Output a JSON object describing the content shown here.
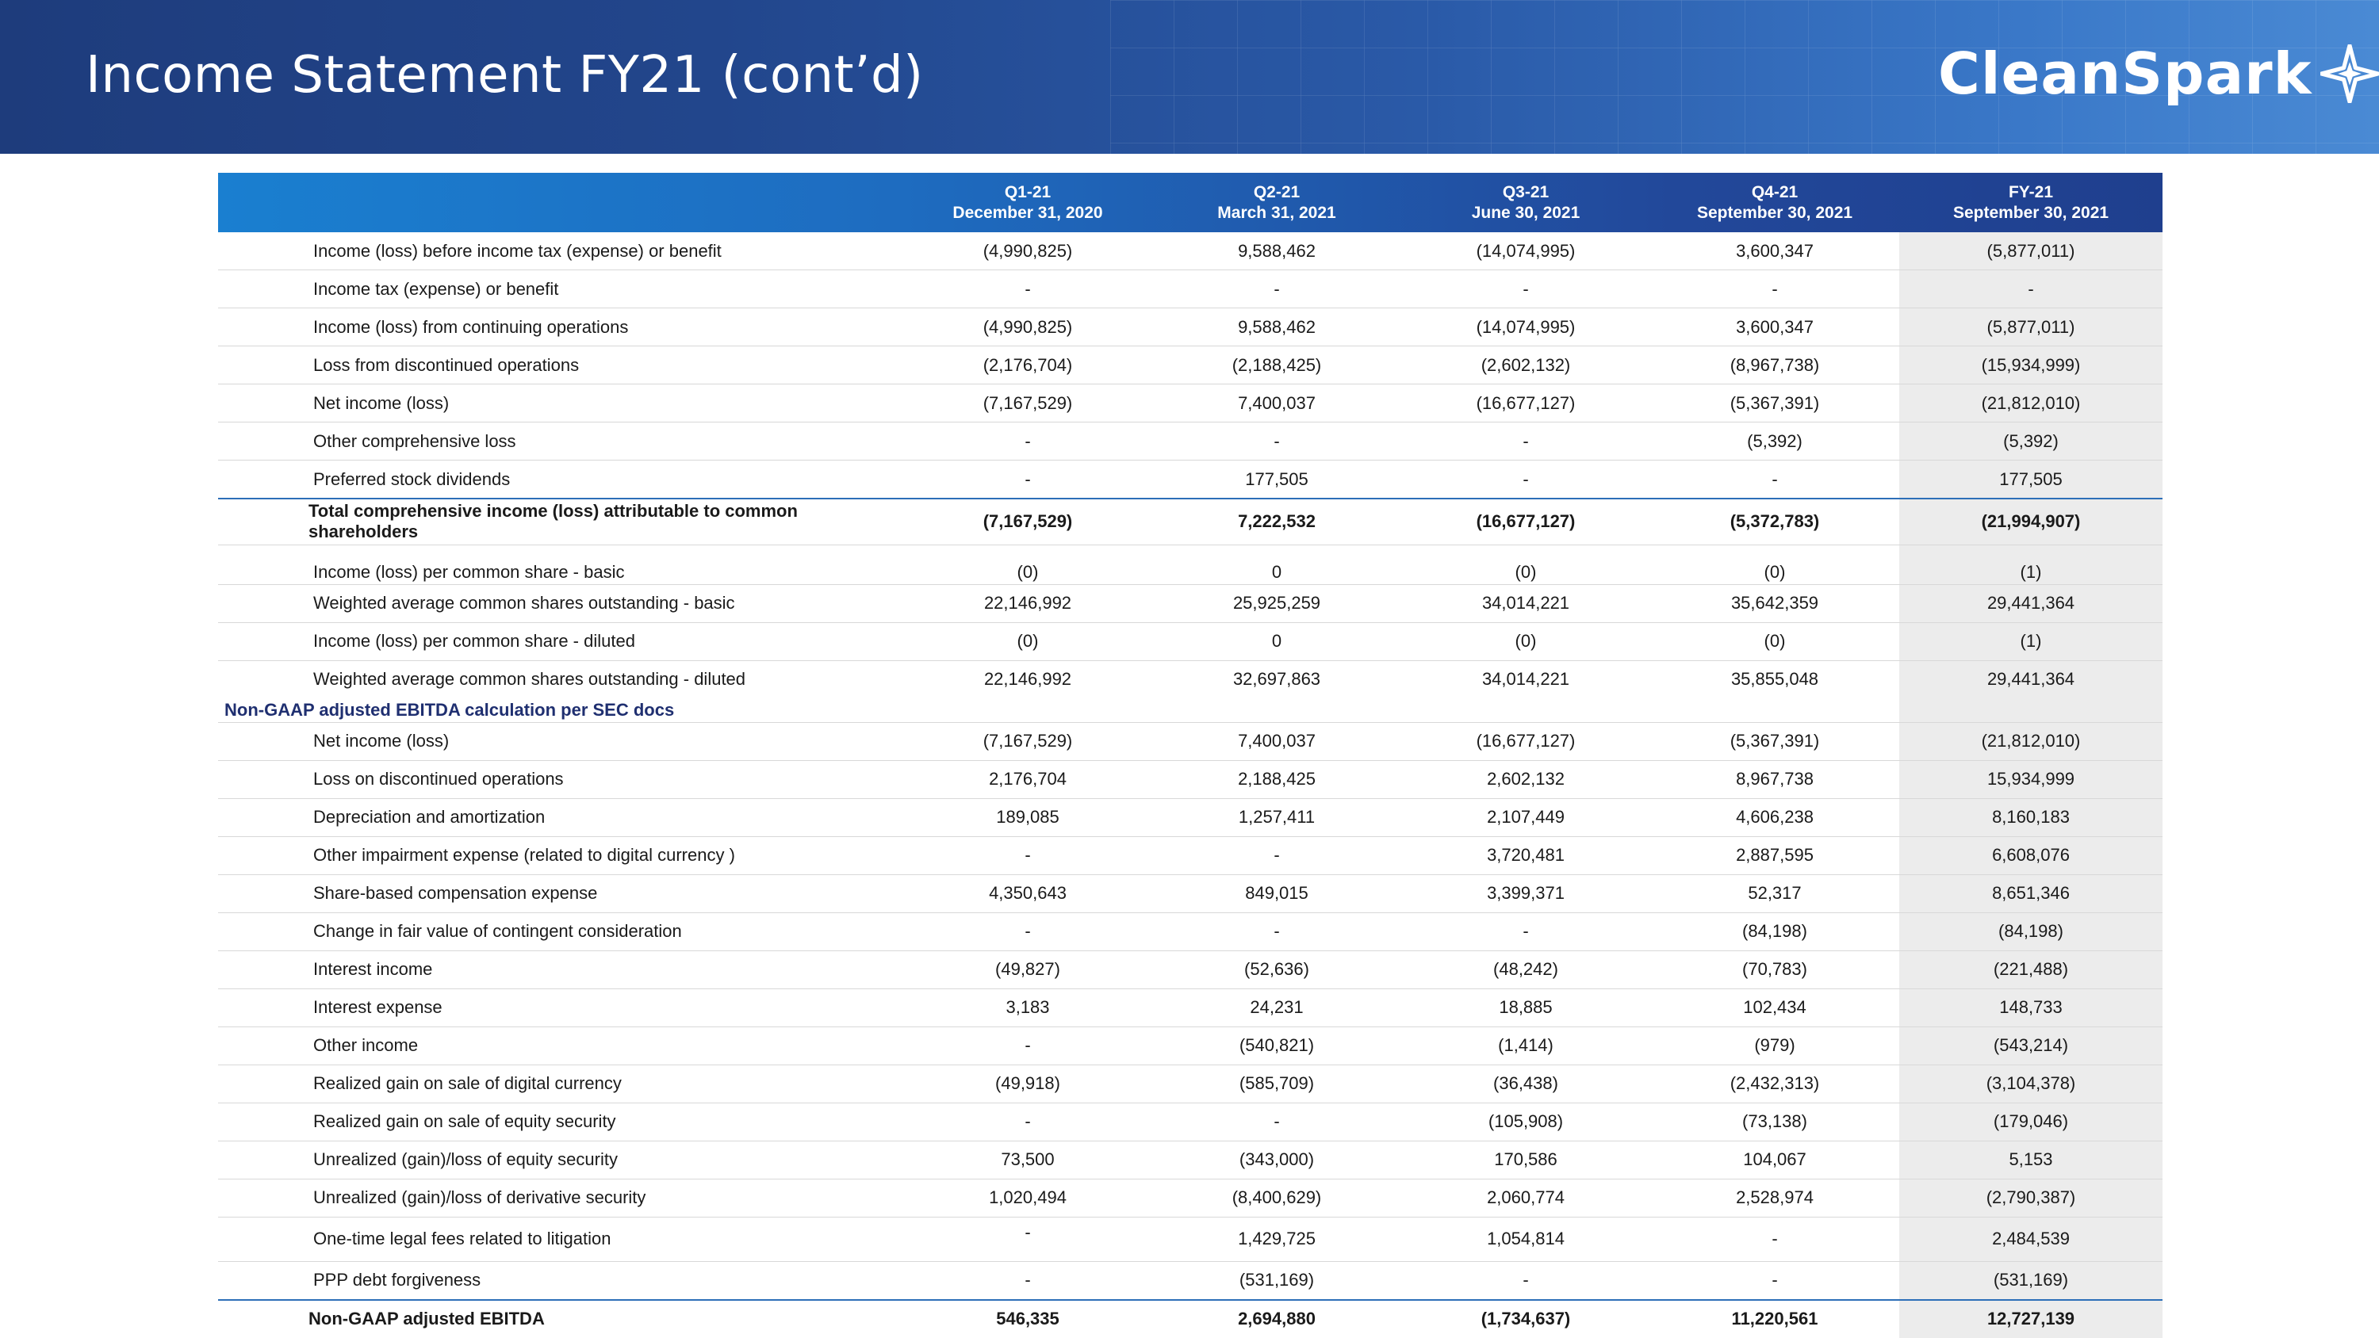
{
  "page": {
    "title": "Income Statement FY21 (cont’d)",
    "logo_text": "CleanSpark",
    "colors": {
      "header_dark": "#1e3c7c",
      "header_light": "#4a8ad4",
      "section_text": "#1f2f70",
      "rule": "#2d6fb8",
      "fy_column_bg": "#ececec"
    }
  },
  "table": {
    "columns": [
      {
        "period": "Q1-21",
        "date": "December 31, 2020"
      },
      {
        "period": "Q2-21",
        "date": "March 31, 2021"
      },
      {
        "period": "Q3-21",
        "date": "June 30, 2021"
      },
      {
        "period": "Q4-21",
        "date": "September 30, 2021"
      },
      {
        "period": "FY-21",
        "date": "September 30, 2021"
      }
    ],
    "rows": [
      {
        "label": "Income (loss) before income tax (expense) or benefit",
        "values": [
          "(4,990,825)",
          "9,588,462",
          "(14,074,995)",
          "3,600,347",
          "(5,877,011)"
        ]
      },
      {
        "label": "Income tax (expense) or benefit",
        "values": [
          "-",
          "-",
          "-",
          "-",
          "-"
        ]
      },
      {
        "label": "Income (loss) from continuing operations",
        "values": [
          "(4,990,825)",
          "9,588,462",
          "(14,074,995)",
          "3,600,347",
          "(5,877,011)"
        ]
      },
      {
        "label": "Loss from discontinued operations",
        "values": [
          "(2,176,704)",
          "(2,188,425)",
          "(2,602,132)",
          "(8,967,738)",
          "(15,934,999)"
        ]
      },
      {
        "label": "Net income (loss)",
        "values": [
          "(7,167,529)",
          "7,400,037",
          "(16,677,127)",
          "(5,367,391)",
          "(21,812,010)"
        ]
      },
      {
        "label": "Other comprehensive loss",
        "values": [
          "-",
          "-",
          "-",
          "(5,392)",
          "(5,392)"
        ]
      },
      {
        "label": "Preferred stock dividends",
        "values": [
          "-",
          "177,505",
          "-",
          "-",
          "177,505"
        ]
      },
      {
        "label": "Total comprehensive income (loss) attributable to common shareholders",
        "values": [
          "(7,167,529)",
          "7,222,532",
          "(16,677,127)",
          "(5,372,783)",
          "(21,994,907)"
        ]
      },
      {
        "label": "Income (loss) per common share - basic",
        "values": [
          "(0)",
          "0",
          "(0)",
          "(0)",
          "(1)"
        ]
      },
      {
        "label": "Weighted average common shares outstanding - basic",
        "values": [
          "22,146,992",
          "25,925,259",
          "34,014,221",
          "35,642,359",
          "29,441,364"
        ]
      },
      {
        "label": "Income (loss) per common share - diluted",
        "values": [
          "(0)",
          "0",
          "(0)",
          "(0)",
          "(1)"
        ]
      },
      {
        "label": "Weighted average common shares outstanding - diluted",
        "values": [
          "22,146,992",
          "32,697,863",
          "34,014,221",
          "35,855,048",
          "29,441,364"
        ]
      }
    ],
    "ebitda_section_title": "Non-GAAP adjusted EBITDA calculation per SEC docs",
    "ebitda_rows": [
      {
        "label": "Net income (loss)",
        "values": [
          "(7,167,529)",
          "7,400,037",
          "(16,677,127)",
          "(5,367,391)",
          "(21,812,010)"
        ]
      },
      {
        "label": "Loss on discontinued operations",
        "values": [
          "2,176,704",
          "2,188,425",
          "2,602,132",
          "8,967,738",
          "15,934,999"
        ]
      },
      {
        "label": "Depreciation and amortization",
        "values": [
          "189,085",
          "1,257,411",
          "2,107,449",
          "4,606,238",
          "8,160,183"
        ]
      },
      {
        "label": "Other impairment expense (related to digital currency )",
        "values": [
          "-",
          "-",
          "3,720,481",
          "2,887,595",
          "6,608,076"
        ]
      },
      {
        "label": "Share-based compensation expense",
        "values": [
          "4,350,643",
          "849,015",
          "3,399,371",
          "52,317",
          "8,651,346"
        ]
      },
      {
        "label": "Change in fair value of contingent consideration",
        "values": [
          "-",
          "-",
          "-",
          "(84,198)",
          "(84,198)"
        ]
      },
      {
        "label": "Interest income",
        "values": [
          "(49,827)",
          "(52,636)",
          "(48,242)",
          "(70,783)",
          "(221,488)"
        ]
      },
      {
        "label": "Interest expense",
        "values": [
          "3,183",
          "24,231",
          "18,885",
          "102,434",
          "148,733"
        ]
      },
      {
        "label": "Other income",
        "values": [
          "-",
          "(540,821)",
          "(1,414)",
          "(979)",
          "(543,214)"
        ]
      },
      {
        "label": "Realized gain on sale of digital currency",
        "values": [
          "(49,918)",
          "(585,709)",
          "(36,438)",
          "(2,432,313)",
          "(3,104,378)"
        ]
      },
      {
        "label": "Realized gain on sale of equity security",
        "values": [
          "-",
          "-",
          "(105,908)",
          "(73,138)",
          "(179,046)"
        ]
      },
      {
        "label": "Unrealized (gain)/loss of equity security",
        "values": [
          "73,500",
          "(343,000)",
          "170,586",
          "104,067",
          "5,153"
        ]
      },
      {
        "label": "Unrealized (gain)/loss of derivative security",
        "values": [
          "1,020,494",
          "(8,400,629)",
          "2,060,774",
          "2,528,974",
          "(2,790,387)"
        ]
      },
      {
        "label": "One-time legal fees related to litigation",
        "values": [
          "-",
          "1,429,725",
          "1,054,814",
          "-",
          "2,484,539"
        ]
      },
      {
        "label": "PPP debt forgiveness",
        "values": [
          "-",
          "(531,169)",
          "-",
          "-",
          "(531,169)"
        ]
      }
    ],
    "ebitda_total": {
      "label": "Non-GAAP adjusted EBITDA",
      "values": [
        "546,335",
        "2,694,880",
        "(1,734,637)",
        "11,220,561",
        "12,727,139"
      ]
    }
  }
}
